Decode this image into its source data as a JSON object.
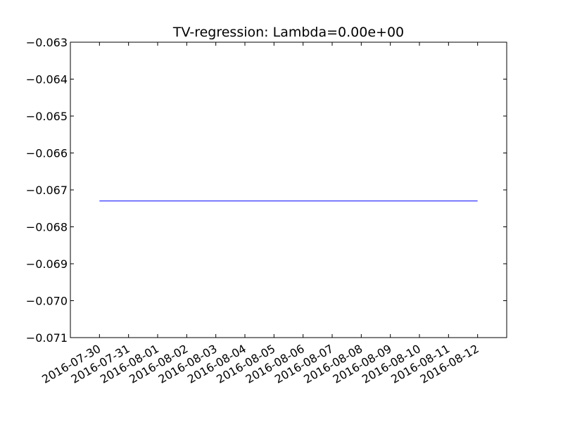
{
  "chart_data": {
    "type": "line",
    "title": "TV-regression: Lambda=0.00e+00",
    "xlabel": "",
    "ylabel": "",
    "x": [
      "2016-07-30",
      "2016-07-31",
      "2016-08-01",
      "2016-08-02",
      "2016-08-03",
      "2016-08-04",
      "2016-08-05",
      "2016-08-06",
      "2016-08-07",
      "2016-08-08",
      "2016-08-09",
      "2016-08-10",
      "2016-08-11",
      "2016-08-12"
    ],
    "series": [
      {
        "values": [
          -0.0673,
          -0.0673,
          -0.0673,
          -0.0673,
          -0.0673,
          -0.0673,
          -0.0673,
          -0.0673,
          -0.0673,
          -0.0673,
          -0.0673,
          -0.0673,
          -0.0673,
          -0.0673
        ],
        "color": "#0000ff"
      }
    ],
    "xlim": [
      "2016-07-29",
      "2016-08-13"
    ],
    "ylim": [
      -0.071,
      -0.063
    ],
    "yticks": [
      -0.063,
      -0.064,
      -0.065,
      -0.066,
      -0.067,
      -0.068,
      -0.069,
      -0.07,
      -0.071
    ],
    "ytick_labels": [
      "−0.063",
      "−0.064",
      "−0.065",
      "−0.066",
      "−0.067",
      "−0.068",
      "−0.069",
      "−0.070",
      "−0.071"
    ],
    "xtick_labels": [
      "2016-07-30",
      "2016-07-31",
      "2016-08-01",
      "2016-08-02",
      "2016-08-03",
      "2016-08-04",
      "2016-08-05",
      "2016-08-06",
      "2016-08-07",
      "2016-08-08",
      "2016-08-09",
      "2016-08-10",
      "2016-08-11",
      "2016-08-12"
    ],
    "grid": false,
    "legend": "none"
  }
}
